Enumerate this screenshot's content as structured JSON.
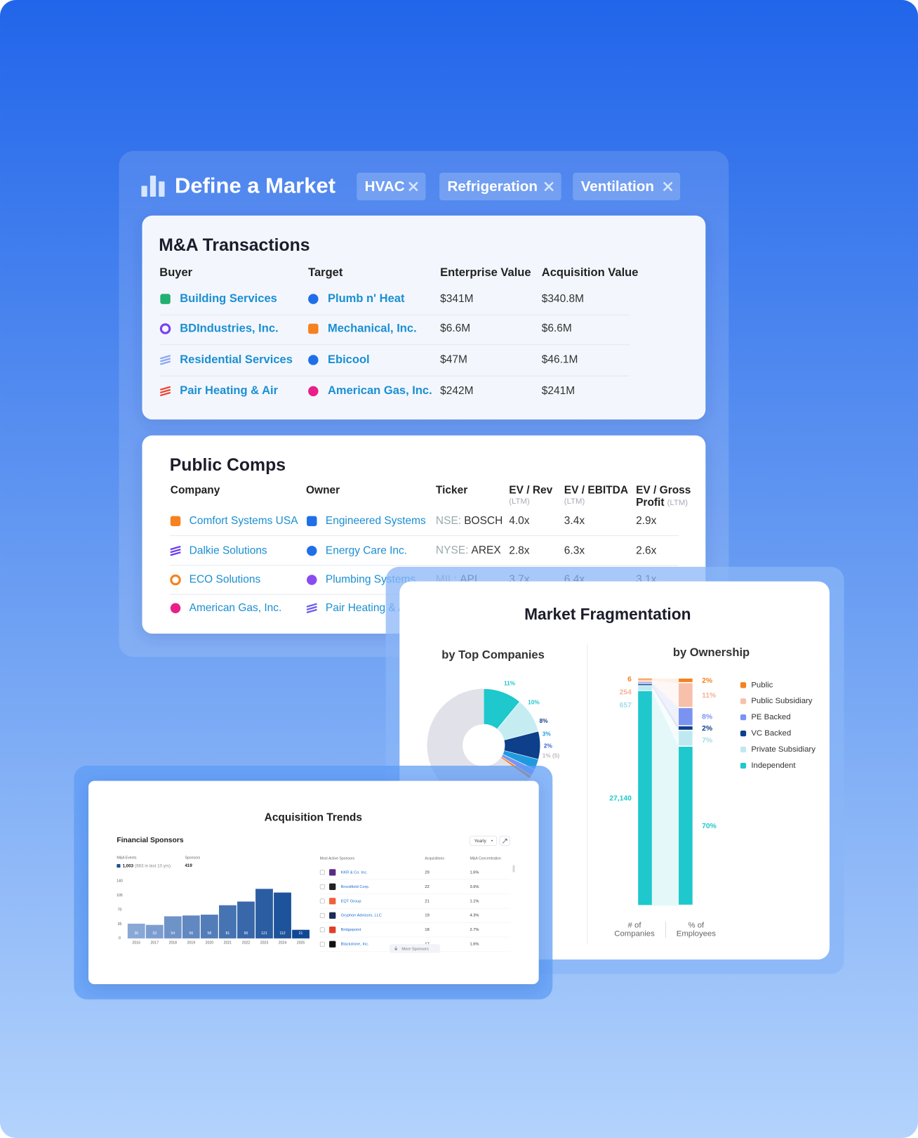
{
  "header": {
    "title": "Define a Market",
    "tags": [
      "HVAC",
      "Refrigeration",
      "Ventilation"
    ]
  },
  "transactions": {
    "title": "M&A Transactions",
    "columns": [
      "Buyer",
      "Target",
      "Enterprise Value",
      "Acquisition Value"
    ],
    "rows": [
      [
        "Building Services",
        "Plumb n' Heat",
        "$341M",
        "$340.8M"
      ],
      [
        "BDIndustries, Inc.",
        "Mechanical, Inc.",
        "$6.6M",
        "$6.6M"
      ],
      [
        "Residential Services",
        "Ebicool",
        "$47M",
        "$46.1M"
      ],
      [
        "Pair Heating & Air",
        "American Gas, Inc.",
        "$242M",
        "$241M"
      ]
    ]
  },
  "comps": {
    "title": "Public Comps",
    "columns": [
      {
        "lines": [
          "Company"
        ]
      },
      {
        "lines": [
          "Owner"
        ]
      },
      {
        "lines": [
          "Ticker"
        ]
      },
      {
        "lines": [
          "EV / Rev"
        ],
        "sub": "(LTM)"
      },
      {
        "lines": [
          "EV / EBITDA"
        ],
        "sub": "(LTM)"
      },
      {
        "lines": [
          "EV / Gross",
          "Profit"
        ],
        "sub": "(LTM)"
      }
    ],
    "rows": [
      {
        "company": "Comfort Systems USA",
        "owner": "Engineered Systems",
        "ticker": [
          "NSE:",
          "BOSCH"
        ],
        "metrics": [
          "4.0x",
          "3.4x",
          "2.9x"
        ]
      },
      {
        "company": "Dalkie Solutions",
        "owner": "Energy Care Inc.",
        "ticker": [
          "NYSE:",
          "AREX"
        ],
        "metrics": [
          "2.8x",
          "6.3x",
          "2.6x"
        ]
      },
      {
        "company": "ECO Solutions",
        "owner": "Plumbing Systems",
        "ticker": [
          "MIL:",
          "API"
        ],
        "metrics": [
          "3.7x",
          "6.4x",
          "3.1x"
        ]
      },
      {
        "company": "American Gas, Inc.",
        "owner": "Pair Heating & Air"
      }
    ]
  },
  "fragmentation": {
    "title": "Market Fragmentation",
    "top_companies": {
      "title": "by Top Companies",
      "values": [
        11,
        10,
        8,
        3,
        2,
        1
      ],
      "value_labels": [
        "11%",
        "10%",
        "8%",
        "3%",
        "2%",
        "1% (5)"
      ],
      "colors": [
        "#1ec8cc",
        "#c5edf1",
        "#0d3f8a",
        "#1e9be0",
        "#7b93f0",
        "#f5821f"
      ]
    },
    "ownership": {
      "title": "by Ownership",
      "categories": [
        "Public",
        "Public Subsidiary",
        "PE Backed",
        "VC Backed",
        "Private Subsidiary",
        "Independent"
      ],
      "colors": [
        "#f5821f",
        "#f8c0aa",
        "#7b93f0",
        "#0d3f8a",
        "#bfe9f0",
        "#1ec8cc"
      ],
      "companies": [
        6,
        254,
        40,
        10,
        657,
        27140
      ],
      "company_labels": [
        "6",
        "254",
        null,
        null,
        "657",
        "27,140"
      ],
      "employees": [
        2,
        11,
        8,
        2,
        7,
        70
      ],
      "employee_labels": [
        "2%",
        "11%",
        "8%",
        "2%",
        "7%",
        "70%"
      ],
      "axis_labels": [
        [
          "# of",
          "Companies"
        ],
        [
          "% of",
          "Employees"
        ]
      ]
    }
  },
  "trends": {
    "title": "Acquisition Trends",
    "subtitle": "Financial Sponsors",
    "period": "Yearly",
    "events_label": "M&A Events",
    "events": "1,003",
    "events_note": "(663 in last 10 yrs)",
    "sponsors_label": "Sponsors",
    "sponsors": "419",
    "chart": {
      "categories": [
        "2016",
        "2017",
        "2018",
        "2019",
        "2020",
        "2021",
        "2022",
        "2023",
        "2024",
        "2025"
      ],
      "values": [
        36,
        33,
        54,
        56,
        58,
        81,
        90,
        121,
        112,
        21
      ],
      "ylim": [
        0,
        140
      ],
      "yticks": [
        0,
        35,
        70,
        105,
        140
      ]
    },
    "table": {
      "columns": [
        "Most Active Sponsors",
        "Acquisitions",
        "M&A Concentration"
      ],
      "rows": [
        [
          "KKR & Co. Inc.",
          "29",
          "1.6%"
        ],
        [
          "Brookfield Corp.",
          "22",
          "3.6%"
        ],
        [
          "EQT Group",
          "21",
          "1.1%"
        ],
        [
          "Gryphon Advisors, LLC",
          "19",
          "4.3%"
        ],
        [
          "Bridgepoint",
          "18",
          "2.7%"
        ],
        [
          "Blackstone, Inc.",
          "17",
          "1.6%"
        ]
      ]
    },
    "more": "More Sponsors"
  }
}
